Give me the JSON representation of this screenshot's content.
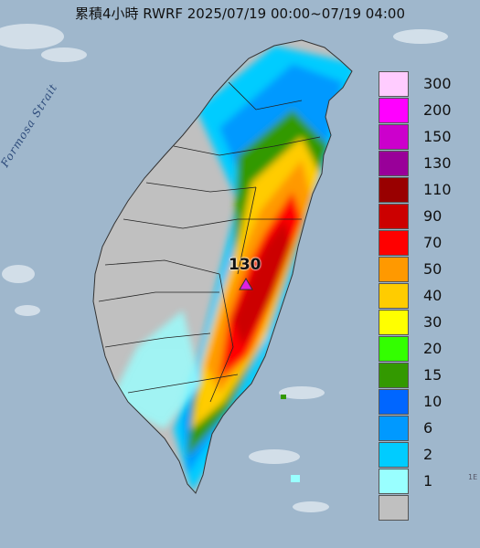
{
  "title": "累積4小時 RWRF 2025/07/19 00:00~07/19 04:00",
  "strait_label": "Formosa Strait",
  "peak": {
    "value": "130",
    "marker_color": "#e020e0"
  },
  "corner_text": "1E",
  "legend": [
    {
      "label": "300",
      "color": "#ffccff"
    },
    {
      "label": "200",
      "color": "#ff00ff"
    },
    {
      "label": "150",
      "color": "#cc00cc"
    },
    {
      "label": "130",
      "color": "#990099"
    },
    {
      "label": "110",
      "color": "#990000"
    },
    {
      "label": "90",
      "color": "#cc0000"
    },
    {
      "label": "70",
      "color": "#ff0000"
    },
    {
      "label": "50",
      "color": "#ff9900"
    },
    {
      "label": "40",
      "color": "#ffcc00"
    },
    {
      "label": "30",
      "color": "#ffff00"
    },
    {
      "label": "20",
      "color": "#33ff00"
    },
    {
      "label": "15",
      "color": "#339900"
    },
    {
      "label": "10",
      "color": "#0066ff"
    },
    {
      "label": "6",
      "color": "#0099ff"
    },
    {
      "label": "2",
      "color": "#00ccff"
    },
    {
      "label": "1",
      "color": "#99ffff"
    },
    {
      "label": "",
      "color": "#c0c0c0"
    }
  ]
}
